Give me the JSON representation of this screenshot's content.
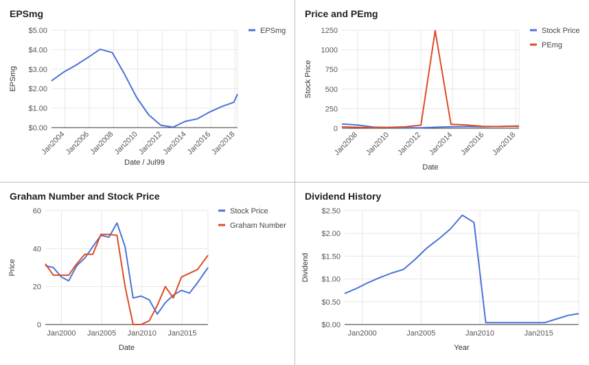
{
  "colors": {
    "blue": "#4a72d6",
    "red": "#dd4b25",
    "grid": "#e6e6e6",
    "axis": "#333333",
    "text": "#555555"
  },
  "chart_data": [
    {
      "type": "line",
      "title": "EPSmg",
      "xlabel": "Date / Jul99",
      "ylabel": "EPSmg",
      "xlim": [
        2002.9,
        2018.2
      ],
      "ylim": [
        0,
        5
      ],
      "yticks": [
        0,
        1,
        2,
        3,
        4,
        5
      ],
      "yticklabels": [
        "$0.00",
        "$1.00",
        "$2.00",
        "$3.00",
        "$4.00",
        "$5.00"
      ],
      "xticks": [
        2004,
        2006,
        2008,
        2010,
        2012,
        2014,
        2016,
        2018
      ],
      "xticklabels": [
        "Jan2004",
        "Jan2006",
        "Jan2008",
        "Jan2010",
        "Jan2012",
        "Jan2014",
        "Jan2016",
        "Jan2018"
      ],
      "grid": true,
      "legend": "top-right",
      "series": [
        {
          "name": "EPSmg",
          "color": "#4a72d6",
          "x": [
            2002.9,
            2003.9,
            2004.9,
            2005.9,
            2006.9,
            2007.9,
            2008.9,
            2009.9,
            2010.9,
            2011.9,
            2012.9,
            2013.9,
            2014.9,
            2015.9,
            2016.9,
            2017.9,
            2018.2
          ],
          "y": [
            2.4,
            2.85,
            3.2,
            3.6,
            4.02,
            3.85,
            2.75,
            1.55,
            0.65,
            0.12,
            0.02,
            0.32,
            0.45,
            0.8,
            1.08,
            1.3,
            1.72
          ]
        }
      ]
    },
    {
      "type": "line",
      "title": "Price and PEmg",
      "xlabel": "Date",
      "ylabel": "Stock Price",
      "xlim": [
        2007.0,
        2018.2
      ],
      "ylim": [
        0,
        1250
      ],
      "yticks": [
        0,
        250,
        500,
        750,
        1000,
        1250
      ],
      "yticklabels": [
        "0",
        "250",
        "500",
        "750",
        "1000",
        "1250"
      ],
      "xticks": [
        2008,
        2010,
        2012,
        2014,
        2016,
        2018
      ],
      "xticklabels": [
        "Jan2008",
        "Jan2010",
        "Jan2012",
        "Jan2014",
        "Jan2016",
        "Jan2018"
      ],
      "grid": true,
      "legend": "top-right",
      "series": [
        {
          "name": "Stock Price",
          "color": "#4a72d6",
          "x": [
            2007.0,
            2008.0,
            2009.0,
            2010.0,
            2011.0,
            2012.0,
            2013.0,
            2014.0,
            2015.0,
            2016.0,
            2017.0,
            2018.0,
            2018.2
          ],
          "y": [
            55,
            42,
            16,
            10,
            8,
            6,
            14,
            20,
            22,
            20,
            24,
            28,
            30
          ]
        },
        {
          "name": "PEmg",
          "color": "#dd4b25",
          "x": [
            2007.0,
            2008.0,
            2009.0,
            2010.0,
            2011.0,
            2012.0,
            2012.9,
            2013.9,
            2014.9,
            2015.9,
            2016.9,
            2017.9,
            2018.2
          ],
          "y": [
            18,
            12,
            8,
            12,
            18,
            40,
            1245,
            52,
            42,
            25,
            22,
            25,
            22
          ]
        }
      ]
    },
    {
      "type": "line",
      "title": "Graham Number and Stock Price",
      "xlabel": "Date",
      "ylabel": "Price",
      "xlim": [
        1998.0,
        2018.2
      ],
      "ylim": [
        0,
        60
      ],
      "yticks": [
        0,
        20,
        40,
        60
      ],
      "yticklabels": [
        "0",
        "20",
        "40",
        "60"
      ],
      "xticks": [
        2000,
        2005,
        2010,
        2015
      ],
      "xticklabels": [
        "Jan2000",
        "Jan2005",
        "Jan2010",
        "Jan2015"
      ],
      "grid": true,
      "legend": "top-right",
      "series": [
        {
          "name": "Stock Price",
          "color": "#4a72d6",
          "x": [
            1998.0,
            1999.0,
            2000.0,
            2000.9,
            2001.9,
            2002.9,
            2003.9,
            2004.9,
            2005.9,
            2006.9,
            2007.9,
            2008.9,
            2009.9,
            2010.9,
            2011.9,
            2012.9,
            2013.9,
            2014.9,
            2015.9,
            2016.9,
            2018.2
          ],
          "y": [
            31,
            30,
            25,
            23,
            31,
            35,
            41,
            47,
            46,
            53.5,
            41,
            14,
            15,
            13,
            5.5,
            11.5,
            15.5,
            18,
            16.5,
            22,
            30
          ]
        },
        {
          "name": "Graham Number",
          "color": "#dd4b25",
          "x": [
            1998.0,
            1999.0,
            2000.0,
            2000.9,
            2001.9,
            2002.9,
            2003.9,
            2004.9,
            2005.9,
            2006.9,
            2007.9,
            2008.9,
            2009.9,
            2010.9,
            2011.9,
            2012.9,
            2013.9,
            2014.9,
            2015.9,
            2016.9,
            2018.2
          ],
          "y": [
            32,
            26,
            26,
            26,
            32,
            37,
            37,
            47.5,
            47.5,
            47,
            20,
            0,
            0,
            2,
            10,
            20,
            14,
            25,
            27,
            29,
            36.5
          ]
        }
      ]
    },
    {
      "type": "line",
      "title": "Dividend History",
      "xlabel": "Year",
      "ylabel": "Dividend",
      "xlim": [
        1998.5,
        2018.4
      ],
      "ylim": [
        0,
        2.5
      ],
      "yticks": [
        0,
        0.5,
        1,
        1.5,
        2,
        2.5
      ],
      "yticklabels": [
        "$0.00",
        "$0.50",
        "$1.00",
        "$1.50",
        "$2.00",
        "$2.50"
      ],
      "xticks": [
        2000,
        2005,
        2010,
        2015
      ],
      "xticklabels": [
        "Jan2000",
        "Jan2005",
        "Jan2010",
        "Jan2015"
      ],
      "grid": true,
      "legend": "none",
      "series": [
        {
          "name": "",
          "color": "#4a72d6",
          "x": [
            1998.5,
            1999.5,
            2000.5,
            2001.5,
            2002.5,
            2003.5,
            2004.5,
            2005.5,
            2006.5,
            2007.5,
            2008.5,
            2009.5,
            2010.5,
            2011.5,
            2012.5,
            2013.5,
            2014.5,
            2015.5,
            2016.5,
            2017.5,
            2018.4
          ],
          "y": [
            0.68,
            0.79,
            0.92,
            1.03,
            1.13,
            1.21,
            1.43,
            1.68,
            1.88,
            2.1,
            2.4,
            2.24,
            0.04,
            0.04,
            0.04,
            0.04,
            0.04,
            0.04,
            0.12,
            0.2,
            0.24
          ]
        }
      ]
    }
  ]
}
